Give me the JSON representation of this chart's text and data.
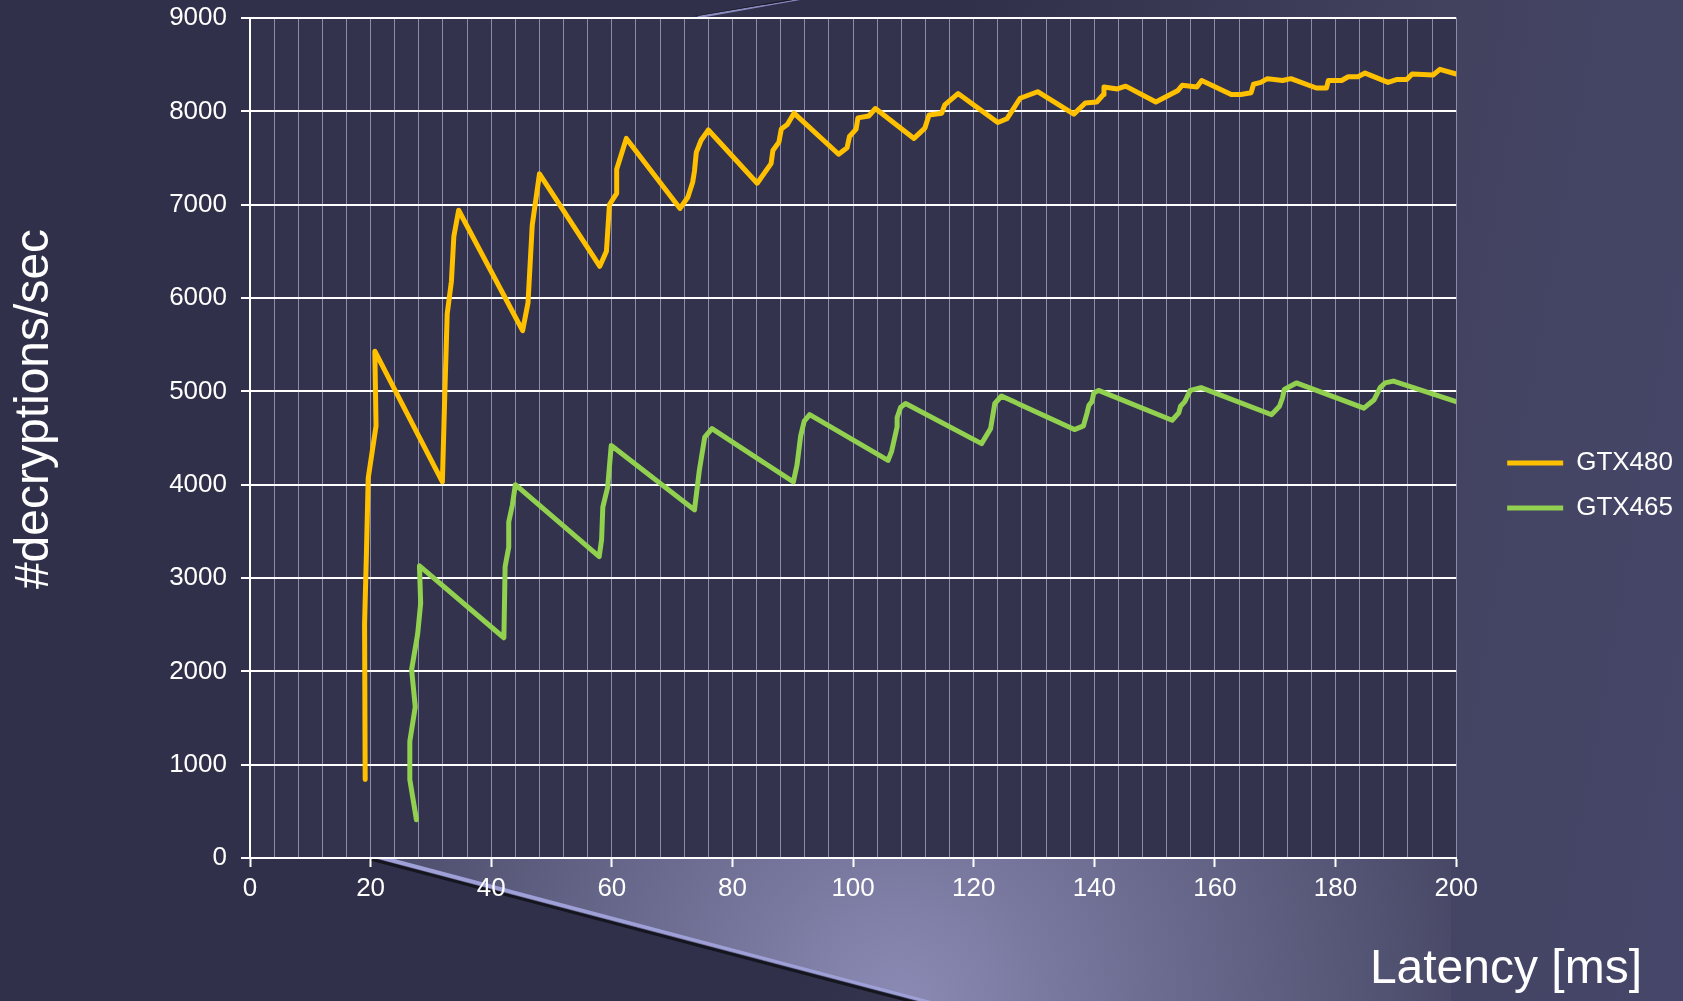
{
  "chart_data": {
    "type": "line",
    "xlabel": "Latency [ms]",
    "ylabel": "#decryptions/sec",
    "xlim": [
      0,
      200
    ],
    "xticks": [
      0,
      {
        "value": 4,
        "label": null
      },
      {
        "value": 8,
        "label": null
      },
      {
        "value": 12,
        "label": null
      },
      {
        "value": 16,
        "label": null
      },
      20,
      {
        "value": 24,
        "label": null
      },
      {
        "value": 28,
        "label": null
      },
      {
        "value": 32,
        "label": null
      },
      {
        "value": 36,
        "label": null
      },
      40,
      {
        "value": 44,
        "label": null
      },
      {
        "value": 48,
        "label": null
      },
      {
        "value": 52,
        "label": null
      },
      {
        "value": 56,
        "label": null
      },
      60,
      {
        "value": 64,
        "label": null
      },
      {
        "value": 68,
        "label": null
      },
      {
        "value": 72,
        "label": null
      },
      {
        "value": 76,
        "label": null
      },
      80,
      {
        "value": 84,
        "label": null
      },
      {
        "value": 88,
        "label": null
      },
      {
        "value": 92,
        "label": null
      },
      {
        "value": 96,
        "label": null
      },
      100,
      {
        "value": 104,
        "label": null
      },
      {
        "value": 108,
        "label": null
      },
      {
        "value": 112,
        "label": null
      },
      {
        "value": 116,
        "label": null
      },
      120,
      {
        "value": 124,
        "label": null
      },
      {
        "value": 128,
        "label": null
      },
      {
        "value": 132,
        "label": null
      },
      {
        "value": 136,
        "label": null
      },
      140,
      {
        "value": 144,
        "label": null
      },
      {
        "value": 148,
        "label": null
      },
      {
        "value": 152,
        "label": null
      },
      {
        "value": 156,
        "label": null
      },
      160,
      {
        "value": 164,
        "label": null
      },
      {
        "value": 168,
        "label": null
      },
      {
        "value": 172,
        "label": null
      },
      {
        "value": 176,
        "label": null
      },
      180,
      {
        "value": 184,
        "label": null
      },
      {
        "value": 188,
        "label": null
      },
      {
        "value": 192,
        "label": null
      },
      {
        "value": 196,
        "label": null
      },
      200
    ],
    "ylim": [
      0,
      9000
    ],
    "yticks": [
      0,
      1000,
      2000,
      3000,
      4000,
      5000,
      6000,
      7000,
      8000,
      9000
    ],
    "grid": true,
    "legend": "right",
    "marker": "none",
    "line_style": "solid",
    "series": [
      {
        "name": "GTX480",
        "color": "#ffc000",
        "x": [
          19.1,
          19.0,
          19.3,
          19.6,
          20.9,
          20.7,
          31.9,
          32.3,
          32.7,
          33.4,
          33.8,
          34.6,
          45.2,
          46.1,
          46.8,
          48.0,
          58.0,
          59.1,
          59.6,
          60.8,
          60.8,
          62.4,
          71.3,
          72.6,
          73.4,
          73.7,
          74.0,
          74.8,
          76.0,
          84.1,
          86.4,
          86.7,
          87.7,
          88.1,
          89.1,
          90.2,
          97.6,
          99.0,
          99.4,
          100.5,
          100.8,
          102.6,
          103.7,
          110.1,
          111.9,
          112.6,
          114.7,
          115.2,
          117.4,
          124.0,
          125.5,
          126.6,
          127.7,
          130.6,
          136.6,
          138.5,
          140.4,
          141.5,
          141.6,
          143.8,
          145.2,
          150.2,
          153.8,
          154.6,
          157.0,
          157.8,
          162.7,
          164.3,
          166.0,
          166.4,
          167.6,
          168.7,
          171.2,
          172.6,
          176.8,
          178.5,
          178.8,
          181.0,
          182.1,
          183.7,
          184.9,
          188.7,
          190.1,
          191.8,
          192.7,
          196.2,
          197.3,
          200
        ],
        "values": [
          840,
          2510,
          3250,
          4070,
          4630,
          5430,
          4030,
          4970,
          5830,
          6180,
          6660,
          6940,
          5650,
          5950,
          6780,
          7330,
          6340,
          6500,
          7000,
          7120,
          7380,
          7710,
          6960,
          7080,
          7240,
          7360,
          7560,
          7690,
          7800,
          7230,
          7440,
          7580,
          7670,
          7810,
          7860,
          7980,
          7540,
          7610,
          7730,
          7810,
          7930,
          7950,
          8030,
          7710,
          7820,
          7960,
          7980,
          8070,
          8190,
          7880,
          7920,
          8030,
          8140,
          8210,
          7970,
          8090,
          8100,
          8180,
          8260,
          8240,
          8270,
          8100,
          8220,
          8280,
          8260,
          8330,
          8180,
          8180,
          8200,
          8290,
          8310,
          8350,
          8330,
          8350,
          8250,
          8250,
          8330,
          8330,
          8370,
          8370,
          8410,
          8310,
          8340,
          8340,
          8400,
          8390,
          8450,
          8400
        ]
      },
      {
        "name": "GTX465",
        "color": "#92d050",
        "x": [
          27.6,
          26.5,
          26.5,
          27.4,
          26.8,
          27.8,
          28.3,
          28.1,
          42.1,
          42.3,
          42.9,
          42.9,
          43.5,
          44.0,
          57.9,
          58.3,
          58.5,
          59.3,
          59.9,
          73.7,
          74.5,
          75.4,
          76.6,
          90.1,
          90.7,
          91.3,
          91.9,
          92.8,
          105.8,
          106.4,
          107.3,
          107.3,
          107.9,
          108.7,
          121.3,
          122.8,
          123.5,
          124.6,
          136.7,
          138.2,
          138.8,
          139.1,
          139.6,
          139.9,
          140.7,
          152.9,
          154.0,
          154.3,
          155.0,
          155.9,
          157.7,
          169.4,
          170.7,
          171.2,
          171.5,
          173.5,
          184.7,
          186.4,
          187.4,
          188.2,
          189.6,
          200
        ],
        "values": [
          410,
          840,
          1250,
          1620,
          2020,
          2400,
          2730,
          3130,
          2360,
          3120,
          3330,
          3600,
          3780,
          4000,
          3230,
          3410,
          3760,
          3970,
          4420,
          3730,
          4150,
          4510,
          4600,
          4030,
          4210,
          4520,
          4680,
          4750,
          4260,
          4360,
          4620,
          4720,
          4830,
          4870,
          4440,
          4600,
          4870,
          4950,
          4590,
          4630,
          4770,
          4850,
          4890,
          4980,
          5010,
          4690,
          4770,
          4840,
          4890,
          5010,
          5040,
          4750,
          4840,
          4930,
          5020,
          5090,
          4820,
          4910,
          5040,
          5090,
          5110,
          4890
        ]
      }
    ]
  }
}
